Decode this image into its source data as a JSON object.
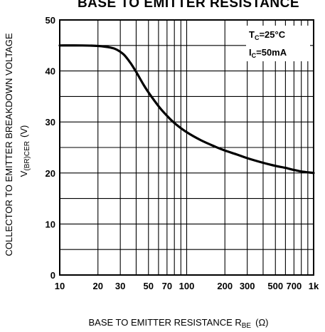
{
  "chart_data": {
    "type": "line",
    "title": "BASE TO EMITTER RESISTANCE",
    "xlabel": "BASE TO EMITTER RESISTANCE R",
    "xlabel_sub": "BE",
    "xlabel_unit": "(Ω)",
    "ylabel": "COLLECTOR TO EMITTER BREAKDOWN VOLTAGE",
    "ylabel2": "V",
    "ylabel2_sub": "(BR)CER",
    "ylabel2_unit": "(V)",
    "x_scale": "log",
    "xlim": [
      10,
      1000
    ],
    "ylim": [
      0,
      50
    ],
    "grid": true,
    "x_ticks": [
      {
        "value": 10,
        "label": "10"
      },
      {
        "value": 20,
        "label": "20"
      },
      {
        "value": 30,
        "label": "30"
      },
      {
        "value": 50,
        "label": "50"
      },
      {
        "value": 70,
        "label": "70"
      },
      {
        "value": 100,
        "label": "100"
      },
      {
        "value": 200,
        "label": "200"
      },
      {
        "value": 300,
        "label": "300"
      },
      {
        "value": 500,
        "label": "500"
      },
      {
        "value": 700,
        "label": "700"
      },
      {
        "value": 1000,
        "label": "1k"
      }
    ],
    "x_gridlines": [
      10,
      20,
      30,
      40,
      50,
      60,
      70,
      80,
      90,
      100,
      200,
      300,
      400,
      500,
      600,
      700,
      800,
      900,
      1000
    ],
    "y_ticks": [
      {
        "value": 0,
        "label": "0"
      },
      {
        "value": 10,
        "label": "10"
      },
      {
        "value": 20,
        "label": "20"
      },
      {
        "value": 30,
        "label": "30"
      },
      {
        "value": 40,
        "label": "40"
      },
      {
        "value": 50,
        "label": "50"
      }
    ],
    "y_gridlines": [
      0,
      5,
      10,
      15,
      20,
      25,
      30,
      35,
      40,
      45,
      50
    ],
    "conditions": [
      {
        "main": "T",
        "sub": "C",
        "rest": "=25°C"
      },
      {
        "main": "I",
        "sub": "C",
        "rest": "=50mA"
      }
    ],
    "series": [
      {
        "x": [
          10,
          15,
          20,
          25,
          28,
          32,
          36,
          40,
          45,
          50,
          60,
          70,
          80,
          100,
          130,
          170,
          200,
          250,
          300,
          400,
          500,
          600,
          700,
          800,
          1000
        ],
        "y": [
          45,
          45,
          44.9,
          44.6,
          44.2,
          43.2,
          41.6,
          39.8,
          37.6,
          35.8,
          33.1,
          31.2,
          29.8,
          28.0,
          26.4,
          25.1,
          24.4,
          23.6,
          22.9,
          22.0,
          21.4,
          21.0,
          20.6,
          20.3,
          20.0
        ]
      }
    ]
  }
}
